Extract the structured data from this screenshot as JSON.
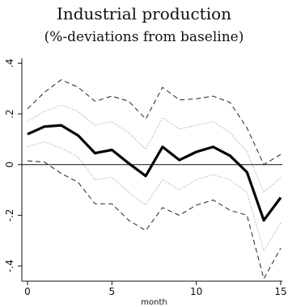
{
  "chart_data": {
    "type": "line",
    "title": "Industrial production",
    "subtitle": "(%-deviations from baseline)",
    "xlabel": "month",
    "ylabel": "",
    "x": [
      0,
      1,
      2,
      3,
      4,
      5,
      6,
      7,
      8,
      9,
      10,
      11,
      12,
      13,
      14,
      15
    ],
    "xlim": [
      0,
      15
    ],
    "ylim": [
      -0.46,
      0.42
    ],
    "x_ticks": [
      "0",
      "5",
      "10",
      "15"
    ],
    "y_ticks": [
      "-.4",
      "-.2",
      "0",
      ".2",
      ".4"
    ],
    "y_tick_values": [
      -0.4,
      -0.2,
      0,
      0.2,
      0.4
    ],
    "x_tick_values": [
      0,
      5,
      10,
      15
    ],
    "zero_line": true,
    "grid": false,
    "series": [
      {
        "style": "solid-thick",
        "values": [
          0.12,
          0.15,
          0.155,
          0.115,
          0.045,
          0.058,
          0.005,
          -0.045,
          0.07,
          0.018,
          0.05,
          0.07,
          0.035,
          -0.03,
          -0.22,
          -0.13
        ]
      },
      {
        "style": "dotted-upper",
        "values": [
          0.17,
          0.21,
          0.235,
          0.21,
          0.155,
          0.17,
          0.125,
          0.06,
          0.185,
          0.14,
          0.155,
          0.17,
          0.125,
          0.05,
          -0.11,
          -0.05
        ]
      },
      {
        "style": "dotted-lower",
        "values": [
          0.07,
          0.09,
          0.065,
          0.03,
          -0.06,
          -0.05,
          -0.11,
          -0.16,
          -0.06,
          -0.1,
          -0.06,
          -0.04,
          -0.06,
          -0.11,
          -0.34,
          -0.23
        ]
      },
      {
        "style": "dashed-upper",
        "values": [
          0.22,
          0.285,
          0.335,
          0.305,
          0.25,
          0.27,
          0.25,
          0.18,
          0.305,
          0.255,
          0.26,
          0.27,
          0.245,
          0.145,
          0.0,
          0.04
        ]
      },
      {
        "style": "dashed-lower",
        "values": [
          0.015,
          0.01,
          -0.035,
          -0.07,
          -0.155,
          -0.155,
          -0.22,
          -0.26,
          -0.17,
          -0.2,
          -0.16,
          -0.14,
          -0.18,
          -0.2,
          -0.45,
          -0.33
        ]
      }
    ]
  }
}
